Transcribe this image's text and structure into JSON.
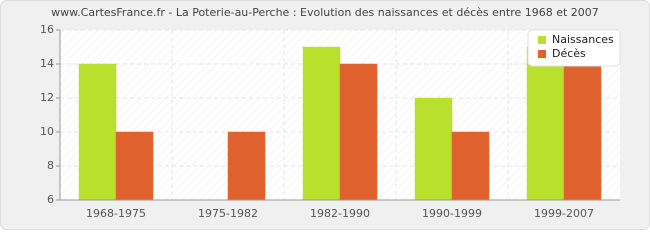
{
  "chart_data": {
    "type": "bar",
    "title": "www.CartesFrance.fr - La Poterie-au-Perche : Evolution des naissances et décès entre 1968 et 2007",
    "categories": [
      "1968-1975",
      "1975-1982",
      "1982-1990",
      "1990-1999",
      "1999-2007"
    ],
    "series": [
      {
        "name": "Naissances",
        "color": "#b8e02c",
        "values": [
          14,
          6,
          15,
          12,
          15
        ]
      },
      {
        "name": "Décès",
        "color": "#e0632f",
        "values": [
          10,
          10,
          14,
          10,
          14
        ]
      }
    ],
    "ylim": [
      6,
      16
    ],
    "yticks": [
      6,
      8,
      10,
      12,
      14,
      16
    ],
    "grid": true,
    "legend": "top-right"
  }
}
